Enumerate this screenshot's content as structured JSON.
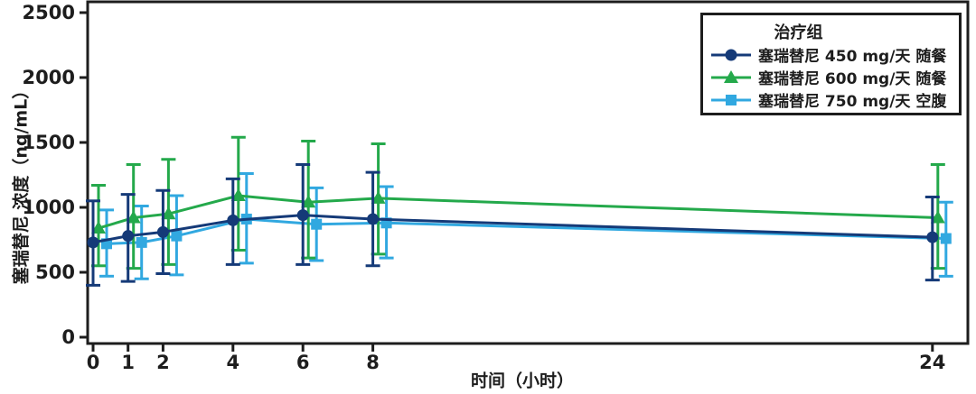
{
  "figure": {
    "background": "#ffffff",
    "axis_color": "#1d1d1d"
  },
  "chart_data": {
    "type": "line",
    "title": "",
    "xlabel": "时间（小时）",
    "ylabel": "塞瑞替尼 浓度（ng/mL）",
    "legend_title": "治疗组",
    "legend_position": "top-right",
    "grid": false,
    "has_error_bars": true,
    "x": [
      0,
      1,
      2,
      4,
      6,
      8,
      24
    ],
    "x_tick_labels": [
      "0",
      "1",
      "2",
      "4",
      "6",
      "8",
      "24"
    ],
    "y_ticks": [
      0,
      500,
      1000,
      1500,
      2000,
      2500
    ],
    "xlim": [
      -0.2,
      25
    ],
    "ylim": [
      0,
      2580
    ],
    "series": [
      {
        "name": "塞瑞替尼 450 mg/天 随餐",
        "marker": "circle",
        "color": "#153a78",
        "values": [
          730,
          780,
          810,
          900,
          940,
          910,
          770
        ],
        "err_low": [
          400,
          430,
          490,
          560,
          560,
          550,
          440
        ],
        "err_high": [
          1050,
          1100,
          1130,
          1220,
          1330,
          1270,
          1080
        ]
      },
      {
        "name": "塞瑞替尼 600 mg/天 随餐",
        "marker": "triangle",
        "color": "#24a94b",
        "values": [
          840,
          920,
          950,
          1090,
          1040,
          1070,
          920
        ],
        "err_low": [
          550,
          530,
          560,
          670,
          610,
          640,
          530
        ],
        "err_high": [
          1170,
          1330,
          1370,
          1540,
          1510,
          1490,
          1330
        ]
      },
      {
        "name": "塞瑞替尼 750 mg/天 空腹",
        "marker": "square",
        "color": "#31a8e0",
        "values": [
          720,
          730,
          780,
          910,
          870,
          880,
          760
        ],
        "err_low": [
          470,
          450,
          480,
          570,
          590,
          610,
          470
        ],
        "err_high": [
          980,
          1010,
          1090,
          1260,
          1150,
          1160,
          1040
        ]
      }
    ]
  }
}
